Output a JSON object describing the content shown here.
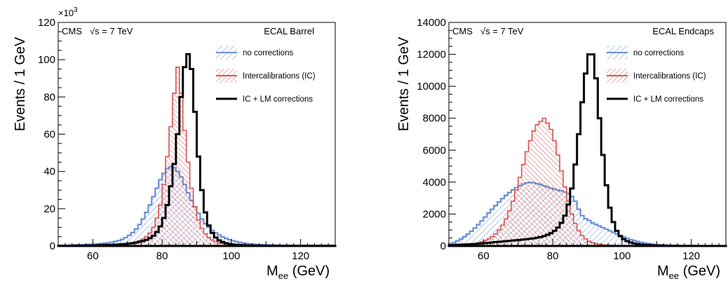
{
  "chart_data": [
    {
      "type": "histogram",
      "panel": "left",
      "experiment_label": "CMS",
      "energy_label": "√s = 7 TeV",
      "region_label": "ECAL Barrel",
      "xlabel": "M",
      "xlabel_sub": "ee",
      "xlabel_unit": " (GeV)",
      "ylabel": "Events / 1 GeV",
      "y_multiplier_base": "×10",
      "y_multiplier_exp": "3",
      "xlim": [
        50,
        130
      ],
      "ylim": [
        0,
        120
      ],
      "x_ticks": [
        60,
        80,
        100,
        120
      ],
      "y_ticks": [
        0,
        20,
        40,
        60,
        80,
        100,
        120
      ],
      "bins": {
        "start": 50,
        "width": 1,
        "count": 80
      },
      "legend": [
        {
          "label": "no corrections",
          "style": "blue-hatch"
        },
        {
          "label": "Intercalibrations (IC)",
          "style": "red-hatch"
        },
        {
          "label": "IC + LM corrections",
          "style": "black-line"
        }
      ],
      "series": [
        {
          "name": "no corrections",
          "color": "#6b8fd6",
          "values": [
            0.3,
            0.3,
            0.4,
            0.4,
            0.5,
            0.6,
            0.6,
            0.7,
            0.8,
            0.9,
            1.0,
            1.1,
            1.3,
            1.5,
            1.7,
            2.0,
            2.4,
            2.9,
            3.6,
            4.5,
            5.7,
            7.2,
            9.1,
            11.5,
            14.5,
            18,
            22,
            26.5,
            31,
            35.5,
            39,
            41.5,
            42.5,
            42,
            40,
            37,
            33,
            28.5,
            24.5,
            21,
            17.5,
            14.5,
            12,
            10,
            8.4,
            7,
            5.9,
            4.9,
            4.1,
            3.4,
            2.8,
            2.3,
            1.9,
            1.6,
            1.3,
            1.1,
            0.9,
            0.8,
            0.7,
            0.6,
            0.5,
            0.45,
            0.4,
            0.35,
            0.3,
            0.3,
            0.25,
            0.25,
            0.2,
            0.2,
            0.2,
            0.15,
            0.15,
            0.15,
            0.1,
            0.1,
            0.1,
            0.1,
            0.1,
            0.1
          ]
        },
        {
          "name": "Intercalibrations (IC)",
          "color": "#d9534f",
          "values": [
            0.1,
            0.1,
            0.1,
            0.1,
            0.2,
            0.2,
            0.2,
            0.2,
            0.3,
            0.3,
            0.3,
            0.4,
            0.4,
            0.5,
            0.5,
            0.6,
            0.7,
            0.8,
            1.0,
            1.2,
            1.5,
            1.8,
            2.3,
            2.9,
            3.8,
            5,
            7,
            10,
            15,
            22,
            33,
            48,
            64,
            82,
            96,
            82,
            62,
            45,
            31,
            21,
            14,
            9.5,
            6.5,
            4.5,
            3.2,
            2.3,
            1.7,
            1.3,
            1.0,
            0.8,
            0.6,
            0.5,
            0.4,
            0.35,
            0.3,
            0.25,
            0.2,
            0.2,
            0.15,
            0.15,
            0.1,
            0.1,
            0.1,
            0.1,
            0.1,
            0.1,
            0.1,
            0.1,
            0.1,
            0.1,
            0.1,
            0.1,
            0.1,
            0.1,
            0.1,
            0.1,
            0.1,
            0.1,
            0.1,
            0.1
          ]
        },
        {
          "name": "IC + LM corrections",
          "color": "#000000",
          "values": [
            0.1,
            0.1,
            0.1,
            0.1,
            0.2,
            0.2,
            0.2,
            0.2,
            0.3,
            0.3,
            0.3,
            0.4,
            0.4,
            0.5,
            0.5,
            0.6,
            0.7,
            0.8,
            1.0,
            1.1,
            1.3,
            1.5,
            1.8,
            2.2,
            2.7,
            3.3,
            4.2,
            5.5,
            7.5,
            10.5,
            15,
            22,
            32,
            44,
            60,
            80,
            96,
            103,
            95,
            72,
            48,
            30,
            18,
            11,
            7,
            4.5,
            3,
            2.1,
            1.5,
            1.1,
            0.8,
            0.6,
            0.5,
            0.4,
            0.35,
            0.3,
            0.25,
            0.2,
            0.2,
            0.15,
            0.15,
            0.1,
            0.1,
            0.1,
            0.1,
            0.1,
            0.1,
            0.1,
            0.1,
            0.1,
            0.1,
            0.1,
            0.1,
            0.1,
            0.1,
            0.1,
            0.1,
            0.1,
            0.1,
            0.1
          ]
        }
      ]
    },
    {
      "type": "histogram",
      "panel": "right",
      "experiment_label": "CMS",
      "energy_label": "√s = 7 TeV",
      "region_label": "ECAL Endcaps",
      "xlabel": "M",
      "xlabel_sub": "ee",
      "xlabel_unit": " (GeV)",
      "ylabel": "Events / 1 GeV",
      "xlim": [
        50,
        130
      ],
      "ylim": [
        0,
        14000
      ],
      "x_ticks": [
        60,
        80,
        100,
        120
      ],
      "y_ticks": [
        0,
        2000,
        4000,
        6000,
        8000,
        10000,
        12000,
        14000
      ],
      "bins": {
        "start": 50,
        "width": 1,
        "count": 80
      },
      "legend": [
        {
          "label": "no corrections",
          "style": "blue-hatch"
        },
        {
          "label": "Intercalibrations (IC)",
          "style": "red-hatch"
        },
        {
          "label": "IC + LM corrections",
          "style": "black-line"
        }
      ],
      "series": [
        {
          "name": "no corrections",
          "color": "#6b8fd6",
          "values": [
            150,
            220,
            320,
            440,
            580,
            740,
            920,
            1120,
            1340,
            1570,
            1810,
            2060,
            2300,
            2530,
            2760,
            2970,
            3170,
            3350,
            3510,
            3650,
            3780,
            3880,
            3950,
            3980,
            3960,
            3900,
            3850,
            3770,
            3700,
            3620,
            3560,
            3500,
            3450,
            3380,
            3280,
            3100,
            2800,
            2300,
            1900,
            1700,
            1600,
            1450,
            1350,
            1250,
            1150,
            1050,
            950,
            850,
            750,
            650,
            560,
            480,
            400,
            340,
            280,
            230,
            190,
            150,
            120,
            100,
            80,
            60,
            50,
            40,
            30,
            25,
            20,
            15,
            12,
            10,
            8,
            6,
            5,
            4,
            3,
            2,
            2,
            1,
            1,
            1
          ]
        },
        {
          "name": "Intercalibrations (IC)",
          "color": "#d9534f",
          "values": [
            20,
            30,
            40,
            60,
            80,
            100,
            130,
            160,
            200,
            260,
            340,
            440,
            580,
            760,
            1000,
            1300,
            1700,
            2200,
            2800,
            3500,
            4300,
            5100,
            5900,
            6600,
            7200,
            7600,
            7800,
            8000,
            7700,
            7300,
            6600,
            5700,
            4700,
            3700,
            2800,
            2000,
            1400,
            950,
            650,
            440,
            300,
            210,
            150,
            110,
            80,
            60,
            45,
            35,
            25,
            20,
            15,
            12,
            10,
            8,
            6,
            5,
            4,
            3,
            2,
            2,
            1,
            1,
            1,
            1,
            1,
            1,
            1,
            1,
            1,
            1,
            1,
            1,
            1,
            1,
            1,
            1,
            1,
            1,
            1,
            1
          ]
        },
        {
          "name": "IC + LM corrections",
          "color": "#000000",
          "values": [
            50,
            60,
            70,
            80,
            90,
            100,
            110,
            120,
            140,
            160,
            180,
            200,
            220,
            240,
            260,
            280,
            300,
            320,
            340,
            360,
            380,
            400,
            420,
            450,
            480,
            520,
            560,
            620,
            700,
            800,
            950,
            1150,
            1450,
            1900,
            2600,
            3600,
            5100,
            7000,
            9000,
            10800,
            12000,
            12000,
            10500,
            8000,
            5700,
            3800,
            2400,
            1500,
            950,
            620,
            420,
            300,
            220,
            160,
            120,
            90,
            70,
            55,
            45,
            35,
            30,
            25,
            20,
            15,
            12,
            10,
            8,
            6,
            5,
            4,
            3,
            2,
            2,
            1,
            1,
            1,
            1,
            1,
            1,
            1
          ]
        }
      ]
    }
  ]
}
